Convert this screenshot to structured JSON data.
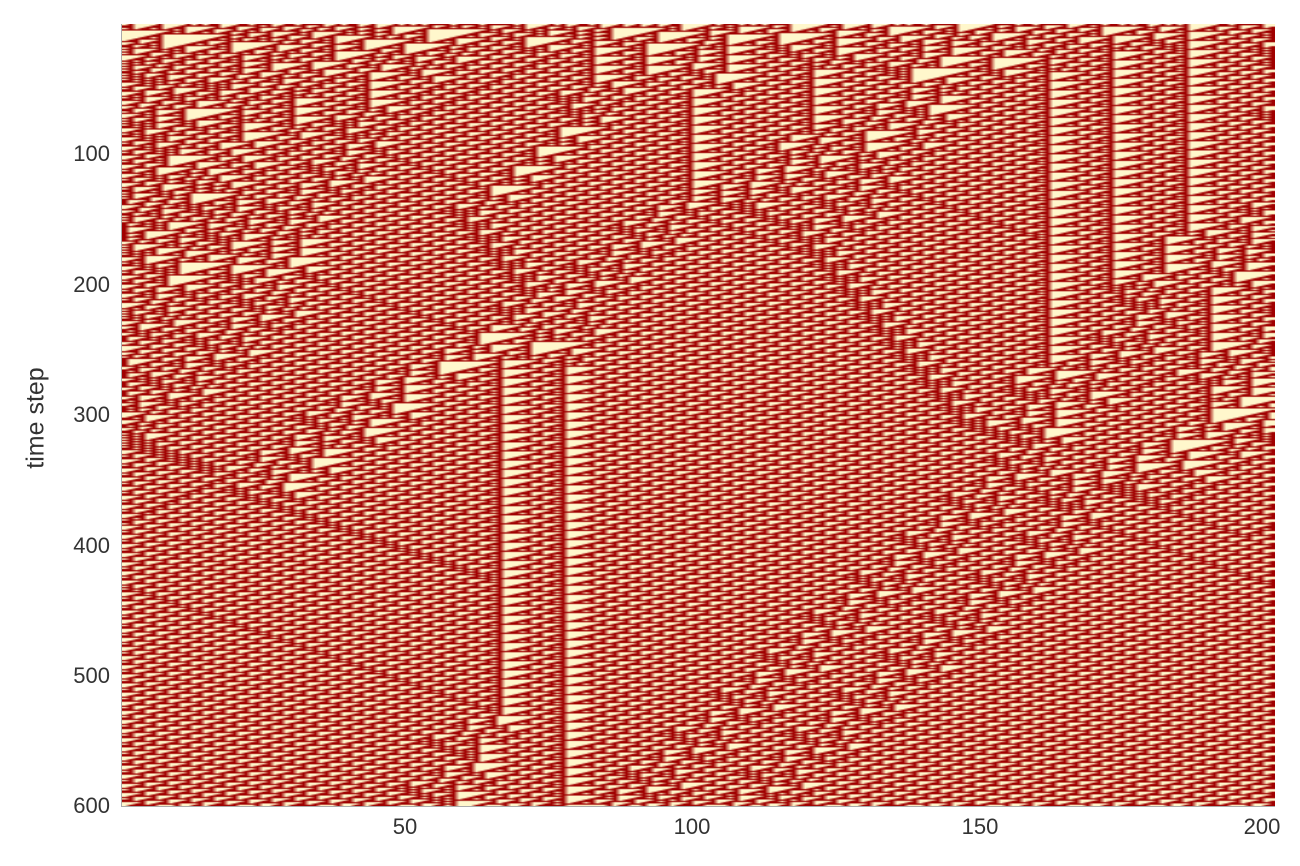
{
  "chart_data": {
    "type": "heatmap",
    "title": "",
    "xlabel": "",
    "ylabel": "time step",
    "xlim": [
      1,
      200
    ],
    "ylim": [
      600,
      1
    ],
    "y_axis_inverted": true,
    "grid": false,
    "xticks": [
      "50",
      "100",
      "150",
      "200"
    ],
    "yticks": [
      "100",
      "200",
      "300",
      "400",
      "500",
      "600"
    ],
    "cells_x": 200,
    "cells_y": 600,
    "colors": {
      "on": "#a00000",
      "off": "#fff7cc"
    }
  }
}
